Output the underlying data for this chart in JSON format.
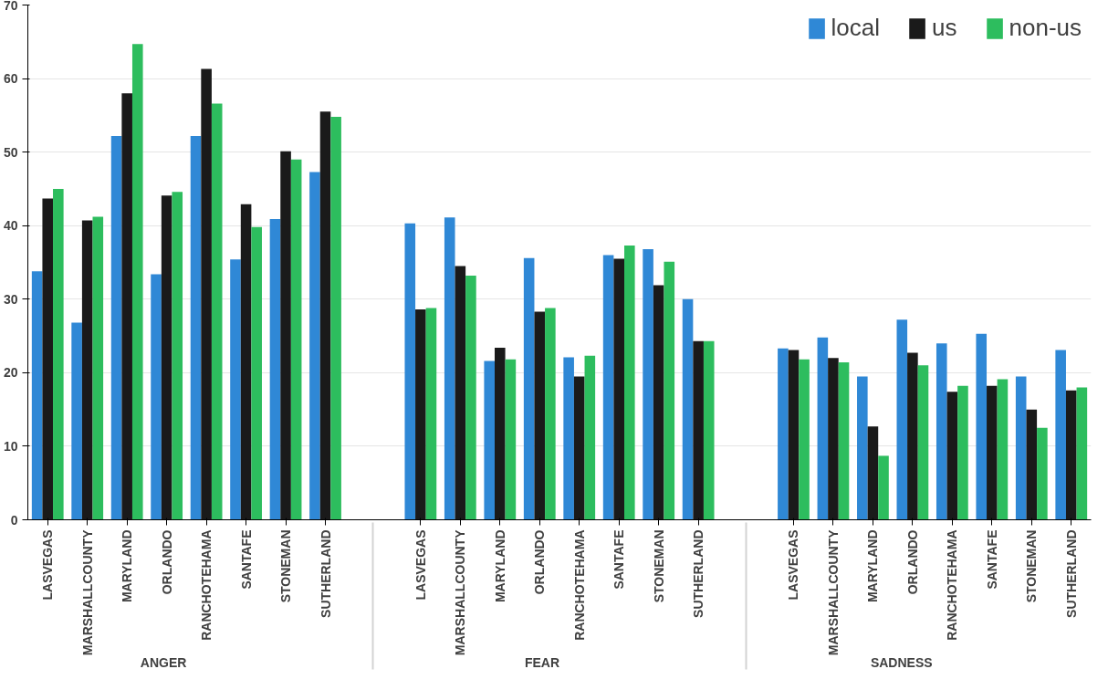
{
  "chart_data": {
    "type": "bar",
    "categories": [
      "LASVEGAS",
      "MARSHALLCOUNTY",
      "MARYLAND",
      "ORLANDO",
      "RANCHOTEHAMA",
      "SANTAFE",
      "STONEMAN",
      "SUTHERLAND",
      "LASVEGAS",
      "MARSHALLCOUNTY",
      "MARYLAND",
      "ORLANDO",
      "RANCHOTEHAMA",
      "SANTAFE",
      "STONEMAN",
      "SUTHERLAND",
      "LASVEGAS",
      "MARSHALLCOUNTY",
      "MARYLAND",
      "ORLANDO",
      "RANCHOTEHAMA",
      "SANTAFE",
      "STONEMAN",
      "SUTHERLAND"
    ],
    "annotations": [
      "ANGER",
      "FEAR",
      "SADNESS"
    ],
    "series": [
      {
        "name": "local",
        "color": "#2f88d6",
        "values": [
          33.8,
          26.8,
          52.2,
          33.4,
          52.2,
          35.4,
          40.9,
          47.3,
          40.3,
          41.1,
          21.6,
          35.6,
          22.1,
          36.0,
          36.8,
          30.0,
          23.3,
          24.8,
          19.5,
          27.2,
          24.0,
          25.3,
          19.5,
          23.1
        ]
      },
      {
        "name": "us",
        "color": "#1a1a1a",
        "values": [
          43.7,
          40.7,
          58.0,
          44.1,
          61.3,
          42.9,
          50.1,
          55.5,
          28.6,
          34.5,
          23.4,
          28.3,
          19.5,
          35.5,
          31.9,
          24.3,
          23.1,
          22.0,
          12.7,
          22.7,
          17.4,
          18.2,
          15.0,
          17.6
        ]
      },
      {
        "name": "non-us",
        "color": "#2dbd5e",
        "values": [
          45.0,
          41.2,
          64.7,
          44.6,
          56.6,
          39.8,
          49.0,
          54.8,
          28.8,
          33.2,
          21.8,
          28.8,
          22.3,
          37.3,
          35.1,
          24.3,
          21.8,
          21.4,
          8.7,
          21.0,
          18.2,
          19.1,
          12.5,
          18.0
        ]
      }
    ],
    "ylim": [
      0,
      70
    ],
    "yticks": [
      0,
      10,
      20,
      30,
      40,
      50,
      60,
      70
    ],
    "grid": "y",
    "legend": "top right"
  }
}
